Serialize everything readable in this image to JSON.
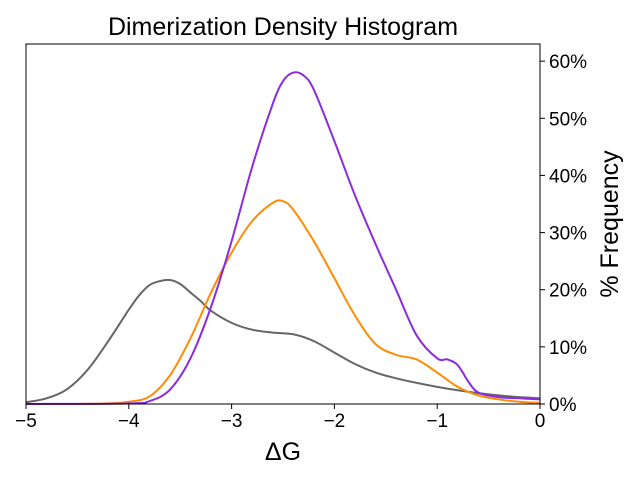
{
  "chart_data": {
    "type": "line",
    "title": "Dimerization Density Histogram",
    "xlabel": "ΔG",
    "ylabel": "% Frequency",
    "xlim": [
      -5,
      0
    ],
    "ylim": [
      0,
      63
    ],
    "y_axis_side": "right",
    "grid": false,
    "x_ticks": [
      -5,
      -4,
      -3,
      -2,
      -1,
      0
    ],
    "x_tick_labels": [
      "−5",
      "−4",
      "−3",
      "−2",
      "−1",
      "0"
    ],
    "y_ticks": [
      0,
      10,
      20,
      30,
      40,
      50,
      60
    ],
    "y_tick_labels": [
      "0%",
      "10%",
      "20%",
      "30%",
      "40%",
      "50%",
      "60%"
    ],
    "series": [
      {
        "color": "#666666",
        "x": [
          -5.0,
          -4.8,
          -4.6,
          -4.4,
          -4.2,
          -4.0,
          -3.9,
          -3.8,
          -3.7,
          -3.6,
          -3.5,
          -3.4,
          -3.3,
          -3.2,
          -3.0,
          -2.8,
          -2.6,
          -2.4,
          -2.2,
          -2.0,
          -1.8,
          -1.6,
          -1.4,
          -1.2,
          -1.0,
          -0.8,
          -0.6,
          -0.4,
          -0.2,
          0.0
        ],
        "y": [
          0.3,
          1.0,
          2.6,
          6.0,
          11.0,
          16.5,
          19.0,
          20.8,
          21.5,
          21.7,
          21.0,
          19.5,
          18.0,
          16.3,
          14.2,
          13.0,
          12.5,
          12.2,
          11.0,
          9.0,
          7.0,
          5.5,
          4.5,
          3.7,
          3.0,
          2.4,
          1.9,
          1.5,
          1.2,
          1.0
        ]
      },
      {
        "color": "#ff8c00",
        "x": [
          -5.0,
          -4.5,
          -4.2,
          -4.0,
          -3.8,
          -3.6,
          -3.4,
          -3.2,
          -3.0,
          -2.8,
          -2.6,
          -2.5,
          -2.4,
          -2.2,
          -2.0,
          -1.8,
          -1.6,
          -1.4,
          -1.2,
          -1.0,
          -0.8,
          -0.6,
          -0.4,
          -0.2,
          0.0
        ],
        "y": [
          0.0,
          0.0,
          0.1,
          0.4,
          1.3,
          5.0,
          11.5,
          19.5,
          26.5,
          32.0,
          35.2,
          35.5,
          34.0,
          28.5,
          22.0,
          15.5,
          10.5,
          8.6,
          7.8,
          5.5,
          3.0,
          1.5,
          0.8,
          0.4,
          0.2
        ]
      },
      {
        "color": "#8a2be2",
        "x": [
          -5.0,
          -4.0,
          -3.8,
          -3.6,
          -3.4,
          -3.2,
          -3.0,
          -2.8,
          -2.6,
          -2.5,
          -2.4,
          -2.3,
          -2.2,
          -2.0,
          -1.8,
          -1.6,
          -1.4,
          -1.2,
          -1.0,
          -0.9,
          -0.8,
          -0.7,
          -0.6,
          -0.4,
          -0.2,
          0.0
        ],
        "y": [
          0.0,
          0.1,
          0.5,
          2.5,
          8.0,
          17.0,
          28.5,
          41.5,
          52.5,
          56.5,
          58.0,
          57.5,
          55.0,
          46.0,
          36.5,
          28.0,
          20.0,
          12.0,
          8.0,
          7.8,
          6.8,
          4.0,
          2.0,
          1.2,
          1.0,
          0.8
        ]
      }
    ]
  }
}
